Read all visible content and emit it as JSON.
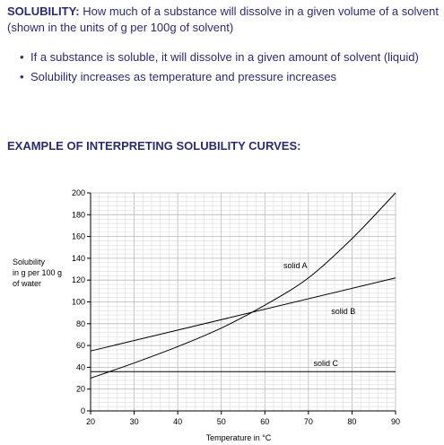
{
  "intro": {
    "keyword": "SOLUBILITY:",
    "definition": " How much of a substance will dissolve in a given volume of a solvent (shown in the units of g per 100g of solvent)"
  },
  "bullets": [
    "If a substance is soluble, it will dissolve in a given amount of solvent (liquid)",
    "Solubility increases as temperature and pressure increases"
  ],
  "section_title": "EXAMPLE OF INTERPRETING SOLUBILITY CURVES:",
  "chart_data": {
    "type": "line",
    "title": "",
    "xlabel": "Temperature in °C",
    "ylabel_lines": [
      "Solubility",
      "in g per 100 g",
      "of water"
    ],
    "xlim": [
      20,
      90
    ],
    "ylim": [
      0,
      200
    ],
    "x_ticks": [
      20,
      30,
      40,
      50,
      60,
      70,
      80,
      90
    ],
    "y_ticks": [
      0,
      20,
      40,
      60,
      80,
      100,
      120,
      140,
      160,
      180,
      200
    ],
    "grid": true,
    "series": [
      {
        "name": "solid A",
        "x": [
          20,
          30,
          40,
          50,
          60,
          70,
          80,
          90
        ],
        "y": [
          30,
          44,
          59,
          76,
          97,
          122,
          158,
          200
        ],
        "label_at": [
          67,
          131
        ]
      },
      {
        "name": "solid B",
        "x": [
          20,
          90
        ],
        "y": [
          55,
          122
        ],
        "label_at": [
          78,
          89
        ]
      },
      {
        "name": "solid C",
        "x": [
          20,
          90
        ],
        "y": [
          36,
          36
        ],
        "label_at": [
          74,
          41
        ]
      }
    ]
  }
}
